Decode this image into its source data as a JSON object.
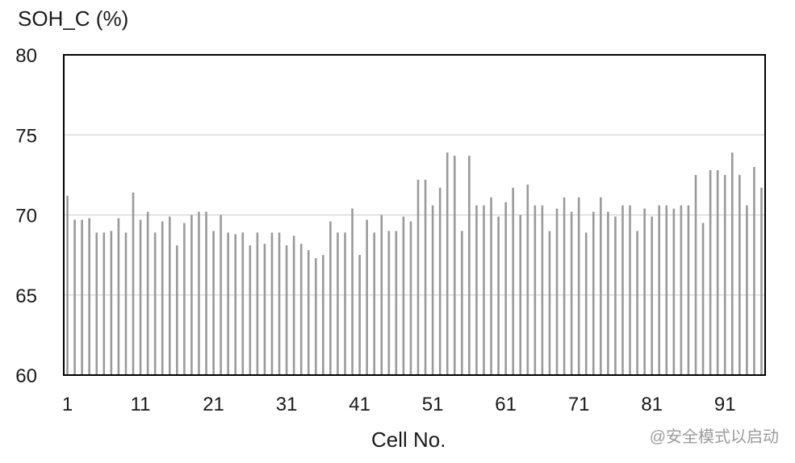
{
  "chart_data": {
    "type": "bar",
    "ylabel": "SOH_C (%)",
    "xlabel": "Cell No.",
    "ylim": [
      60,
      80
    ],
    "yticks": [
      60,
      65,
      70,
      75,
      80
    ],
    "xtick_labels": [
      "1",
      "11",
      "21",
      "31",
      "41",
      "51",
      "61",
      "71",
      "81",
      "91"
    ],
    "grid": "horizontal",
    "bar_color": "#9a9a9a",
    "frame_color": "#000000",
    "categories": [
      1,
      2,
      3,
      4,
      5,
      6,
      7,
      8,
      9,
      10,
      11,
      12,
      13,
      14,
      15,
      16,
      17,
      18,
      19,
      20,
      21,
      22,
      23,
      24,
      25,
      26,
      27,
      28,
      29,
      30,
      31,
      32,
      33,
      34,
      35,
      36,
      37,
      38,
      39,
      40,
      41,
      42,
      43,
      44,
      45,
      46,
      47,
      48,
      49,
      50,
      51,
      52,
      53,
      54,
      55,
      56,
      57,
      58,
      59,
      60,
      61,
      62,
      63,
      64,
      65,
      66,
      67,
      68,
      69,
      70,
      71,
      72,
      73,
      74,
      75,
      76,
      77,
      78,
      79,
      80,
      81,
      82,
      83,
      84,
      85,
      86,
      87,
      88,
      89,
      90,
      91,
      92,
      93,
      94,
      95,
      96
    ],
    "values": [
      71.2,
      69.7,
      69.7,
      69.8,
      68.9,
      68.9,
      69.0,
      69.8,
      68.9,
      71.4,
      69.7,
      70.2,
      68.9,
      69.6,
      69.9,
      68.1,
      69.5,
      70.0,
      70.2,
      70.2,
      69.0,
      70.0,
      68.9,
      68.8,
      68.9,
      68.1,
      68.9,
      68.2,
      68.9,
      68.9,
      68.1,
      68.7,
      68.2,
      67.8,
      67.3,
      67.5,
      69.6,
      68.9,
      68.9,
      70.4,
      67.5,
      69.7,
      68.9,
      70.0,
      69.0,
      69.0,
      69.9,
      69.6,
      72.2,
      72.2,
      70.6,
      71.7,
      73.9,
      73.7,
      69.0,
      73.7,
      70.6,
      70.6,
      71.1,
      69.9,
      70.8,
      71.7,
      70.0,
      71.9,
      70.6,
      70.6,
      69.0,
      70.4,
      71.1,
      70.2,
      71.1,
      68.9,
      70.2,
      71.1,
      70.2,
      69.9,
      70.6,
      70.6,
      69.0,
      70.4,
      69.9,
      70.6,
      70.6,
      70.4,
      70.6,
      70.6,
      72.5,
      69.5,
      72.8,
      72.8,
      72.5,
      73.9,
      72.5,
      70.6,
      73.0,
      71.7
    ]
  },
  "watermark": "@安全模式以启动"
}
